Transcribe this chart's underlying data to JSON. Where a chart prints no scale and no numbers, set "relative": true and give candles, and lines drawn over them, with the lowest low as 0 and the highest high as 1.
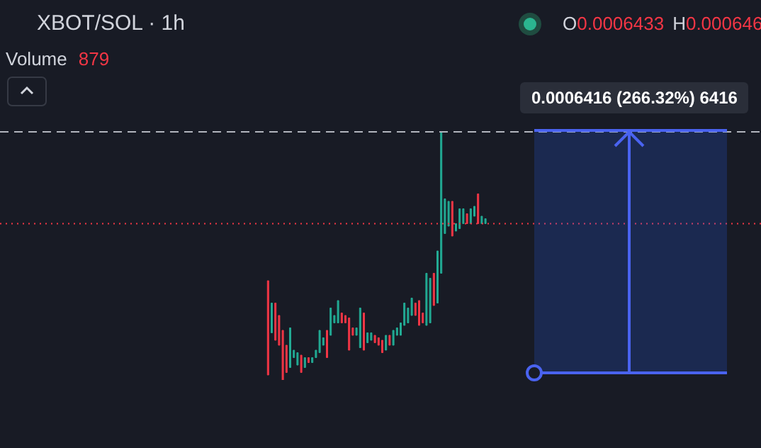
{
  "chart_data": {
    "type": "candlestick",
    "title": "XBOT/SOL · 1h",
    "relative": true,
    "categories": [
      null,
      null,
      null,
      null,
      null,
      null,
      null,
      null,
      null,
      null,
      null,
      null,
      null,
      null,
      null,
      null,
      null,
      null,
      null,
      null,
      null,
      null,
      null,
      null,
      null,
      null,
      null,
      null,
      null,
      null,
      null,
      null,
      null,
      null,
      null,
      null,
      null,
      null,
      null,
      null,
      null,
      null,
      null,
      null,
      null,
      null,
      null,
      null,
      null,
      null,
      null,
      null,
      null,
      null,
      null,
      null,
      null,
      null,
      null,
      null
    ],
    "ohlc": [
      [
        0.4,
        0.4,
        0.02,
        0.02
      ],
      [
        0.19,
        0.31,
        0.19,
        0.31
      ],
      [
        0.31,
        0.31,
        0.16,
        0.16
      ],
      [
        0.26,
        0.26,
        0.14,
        0.14
      ],
      [
        0.2,
        0.2,
        0,
        0
      ],
      [
        0.14,
        0.14,
        0.03,
        0.03
      ],
      [
        0.05,
        0.21,
        0.05,
        0.21
      ],
      [
        0.09,
        0.12,
        0.09,
        0.12
      ],
      [
        0.06,
        0.11,
        0.06,
        0.11
      ],
      [
        0.1,
        0.1,
        0.03,
        0.03
      ],
      [
        0.05,
        0.09,
        0.05,
        0.09
      ],
      [
        0.09,
        0.09,
        0.07,
        0.07
      ],
      [
        0.07,
        0.09,
        0.07,
        0.09
      ],
      [
        0.09,
        0.12,
        0.09,
        0.12
      ],
      [
        0.11,
        0.2,
        0.11,
        0.2
      ],
      [
        0.14,
        0.17,
        0.14,
        0.17
      ],
      [
        0.2,
        0.2,
        0.09,
        0.09
      ],
      [
        0.18,
        0.29,
        0.18,
        0.29
      ],
      [
        0.23,
        0.26,
        0.23,
        0.26
      ],
      [
        0.23,
        0.32,
        0.23,
        0.32
      ],
      [
        0.27,
        0.27,
        0.23,
        0.23
      ],
      [
        0.26,
        0.26,
        0.23,
        0.23
      ],
      [
        0.25,
        0.25,
        0.12,
        0.12
      ],
      [
        0.21,
        0.21,
        0.18,
        0.18
      ],
      [
        0.18,
        0.21,
        0.18,
        0.21
      ],
      [
        0.13,
        0.29,
        0.13,
        0.29
      ],
      [
        0.27,
        0.27,
        0.12,
        0.12
      ],
      [
        0.15,
        0.19,
        0.15,
        0.19
      ],
      [
        0.16,
        0.19,
        0.16,
        0.19
      ],
      [
        0.18,
        0.18,
        0.15,
        0.15
      ],
      [
        0.17,
        0.17,
        0.14,
        0.14
      ],
      [
        0.16,
        0.16,
        0.11,
        0.11
      ],
      [
        0.12,
        0.18,
        0.12,
        0.18
      ],
      [
        0.18,
        0.18,
        0.14,
        0.14
      ],
      [
        0.14,
        0.2,
        0.14,
        0.2
      ],
      [
        0.18,
        0.21,
        0.18,
        0.21
      ],
      [
        0.18,
        0.23,
        0.18,
        0.23
      ],
      [
        0.22,
        0.31,
        0.22,
        0.31
      ],
      [
        0.23,
        0.29,
        0.23,
        0.29
      ],
      [
        0.26,
        0.33,
        0.26,
        0.33
      ],
      [
        0.31,
        0.31,
        0.26,
        0.26
      ],
      [
        0.32,
        0.32,
        0.22,
        0.22
      ],
      [
        0.27,
        0.27,
        0.23,
        0.23
      ],
      [
        0.22,
        0.43,
        0.22,
        0.43
      ],
      [
        0.23,
        0.41,
        0.23,
        0.41
      ],
      [
        0.43,
        0.43,
        0.3,
        0.3
      ],
      [
        0.31,
        0.52,
        0.31,
        0.52
      ],
      [
        0.43,
        1,
        0.43,
        1
      ],
      [
        0.59,
        0.73,
        0.59,
        0.73
      ],
      [
        0.62,
        0.72,
        0.62,
        0.72
      ],
      [
        0.72,
        0.72,
        0.58,
        0.58
      ],
      [
        0.6,
        0.63,
        0.6,
        0.63
      ],
      [
        0.61,
        0.69,
        0.61,
        0.69
      ],
      [
        0.63,
        0.69,
        0.63,
        0.69
      ],
      [
        0.67,
        0.67,
        0.63,
        0.63
      ],
      [
        0.63,
        0.69,
        0.63,
        0.69
      ],
      [
        0.66,
        0.7,
        0.66,
        0.7
      ],
      [
        0.75,
        0.75,
        0.63,
        0.63
      ],
      [
        0.63,
        0.66,
        0.63,
        0.66
      ],
      [
        0.63,
        0.65,
        0.63,
        0.65
      ]
    ],
    "ref_lines": [
      {
        "axis": "y",
        "value": 0.63,
        "color": "#f23645",
        "line_style": "dotted"
      },
      {
        "axis": "y",
        "value": 1,
        "color": "#b2b5be",
        "line_style": "dashed"
      }
    ],
    "annotations": [
      "O",
      "0.0006433",
      "H",
      "0.000646",
      "Volume",
      "879",
      "0.0006416 (266.32%) 6416"
    ]
  }
}
